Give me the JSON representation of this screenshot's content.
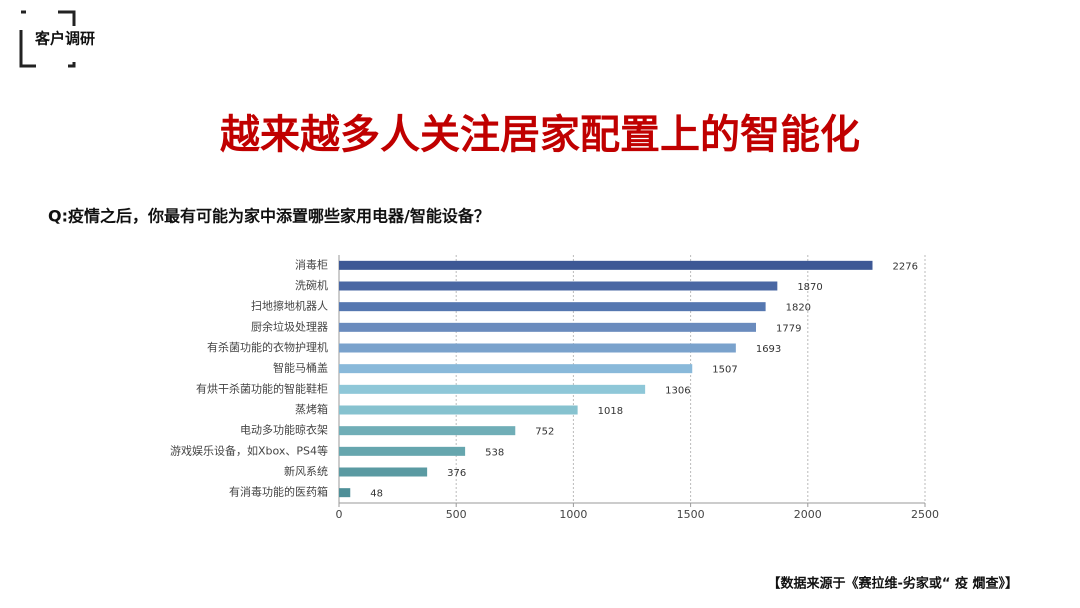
{
  "section_label": "客户调研",
  "source": "【数据来源于《赛拉维-劣家或“ 疫 燗查》】",
  "chart_data": {
    "type": "bar",
    "orientation": "horizontal",
    "title": "越来越多人关注居家配置上的智能化",
    "subtitle": "Q:疫情之后，你最有可能为家中添置哪些家用电器/智能设备？",
    "categories": [
      "消毒柜",
      "洗碗机",
      "扫地擦地机器人",
      "厨余垃圾处理器",
      "有杀菌功能的衣物护理机",
      "智能马桶盖",
      "有烘干杀菌功能的智能鞋柜",
      "蒸烤箱",
      "电动多功能晾衣架",
      "游戏娱乐设备，如Xbox、PS4等",
      "新风系统",
      "有消毒功能的医药箱"
    ],
    "values": [
      2276,
      1870,
      1820,
      1779,
      1693,
      1507,
      1306,
      1018,
      752,
      538,
      376,
      48
    ],
    "colors": [
      "#3d5895",
      "#4a67a3",
      "#5577b0",
      "#6a8bbd",
      "#7aa2cc",
      "#89b9da",
      "#8ec7d8",
      "#86c2cf",
      "#70aeb7",
      "#66a6ae",
      "#5a9aa2",
      "#4e8f98"
    ],
    "xlim": [
      0,
      2500
    ],
    "xticks": [
      0,
      500,
      1000,
      1500,
      2000,
      2500
    ],
    "grid": true
  }
}
